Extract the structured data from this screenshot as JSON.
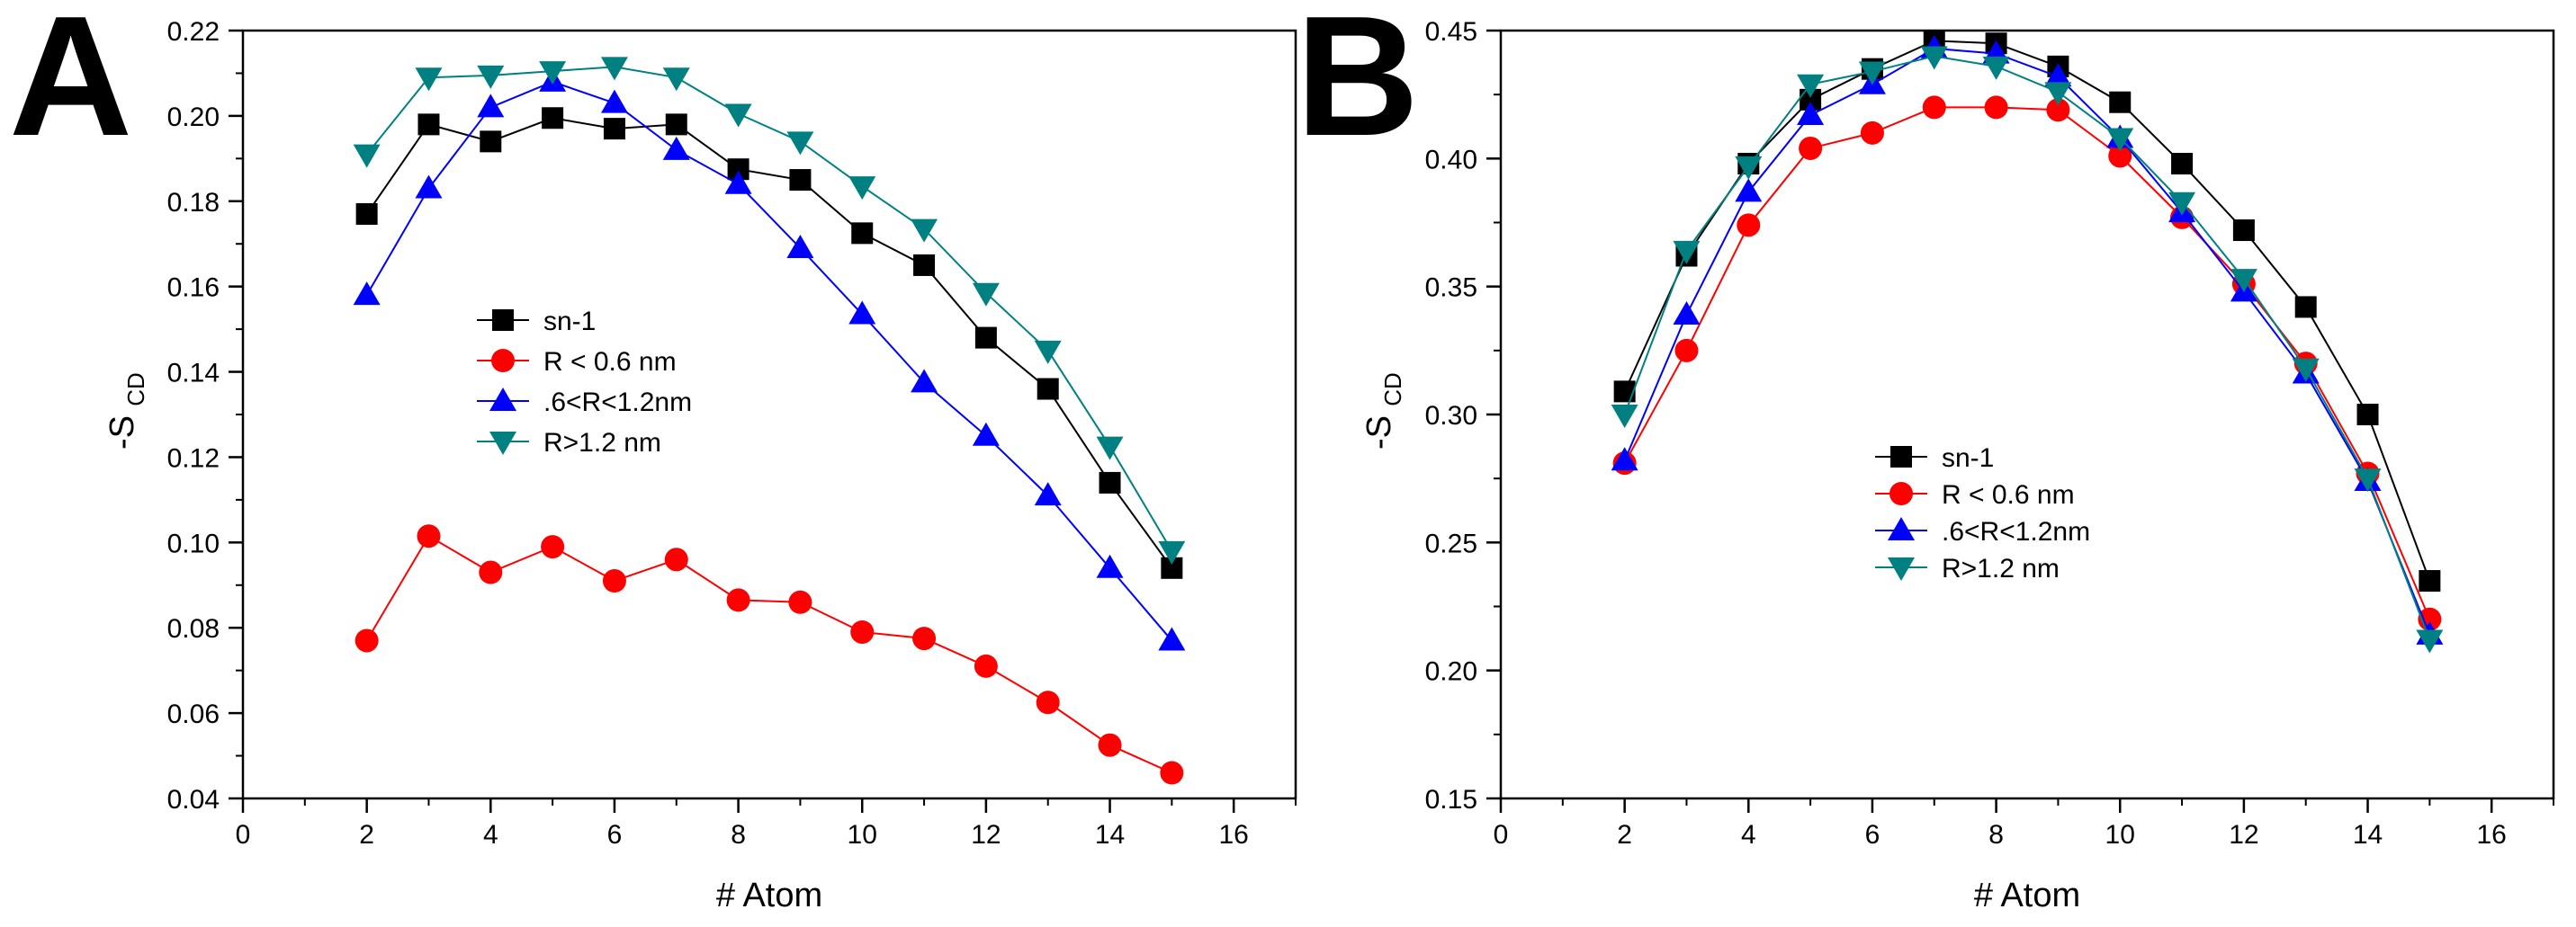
{
  "chart_data": [
    {
      "panel_label": "A",
      "type": "line",
      "xlabel": "# Atom",
      "ylabel_main": "-S",
      "ylabel_sub": "CD",
      "xlim": [
        0,
        17
      ],
      "ylim": [
        0.04,
        0.22
      ],
      "x_ticks": [
        0,
        2,
        4,
        6,
        8,
        10,
        12,
        14,
        16
      ],
      "y_ticks": [
        0.04,
        0.06,
        0.08,
        0.1,
        0.12,
        0.14,
        0.16,
        0.18,
        0.2,
        0.22
      ],
      "x_tick_labels": [
        "0",
        "2",
        "4",
        "6",
        "8",
        "10",
        "12",
        "14",
        "16"
      ],
      "y_tick_labels": [
        "0.04",
        "0.06",
        "0.08",
        "0.10",
        "0.12",
        "0.14",
        "0.16",
        "0.18",
        "0.20",
        "0.22"
      ],
      "legend_position": "center",
      "x": [
        2,
        3,
        4,
        5,
        6,
        7,
        8,
        9,
        10,
        11,
        12,
        13,
        14,
        15
      ],
      "series": [
        {
          "name": "sn-1",
          "color": "#000000",
          "marker": "square",
          "values": [
            0.177,
            0.198,
            0.194,
            0.1995,
            0.197,
            0.198,
            0.1875,
            0.185,
            0.1725,
            0.165,
            0.148,
            0.136,
            0.114,
            0.094
          ]
        },
        {
          "name": "R < 0.6 nm",
          "color": "#ff0000",
          "marker": "circle",
          "values": [
            0.077,
            0.1015,
            0.093,
            0.099,
            0.091,
            0.096,
            0.0865,
            0.086,
            0.079,
            0.0775,
            0.071,
            0.0625,
            0.0525,
            0.046
          ]
        },
        {
          "name": ".6<R<1.2nm",
          "color": "#0000ff",
          "marker": "triangle-up",
          "values": [
            0.158,
            0.183,
            0.202,
            0.208,
            0.203,
            0.192,
            0.184,
            0.169,
            0.1535,
            0.1375,
            0.125,
            0.111,
            0.094,
            0.077
          ]
        },
        {
          "name": "R>1.2 nm",
          "color": "#008080",
          "marker": "triangle-down",
          "values": [
            0.191,
            0.209,
            0.2095,
            0.2105,
            0.2115,
            0.209,
            0.2005,
            0.194,
            0.1835,
            0.1735,
            0.1585,
            0.145,
            0.1225,
            0.098
          ]
        }
      ]
    },
    {
      "panel_label": "B",
      "type": "line",
      "xlabel": "# Atom",
      "ylabel_main": "-S",
      "ylabel_sub": "CD",
      "xlim": [
        0,
        17
      ],
      "ylim": [
        0.15,
        0.45
      ],
      "x_ticks": [
        0,
        2,
        4,
        6,
        8,
        10,
        12,
        14,
        16
      ],
      "y_ticks": [
        0.15,
        0.2,
        0.25,
        0.3,
        0.35,
        0.4,
        0.45
      ],
      "x_tick_labels": [
        "0",
        "2",
        "4",
        "6",
        "8",
        "10",
        "12",
        "14",
        "16"
      ],
      "y_tick_labels": [
        "0.15",
        "0.20",
        "0.25",
        "0.30",
        "0.35",
        "0.40",
        "0.45"
      ],
      "legend_position": "center-right",
      "x": [
        2,
        3,
        4,
        5,
        6,
        7,
        8,
        9,
        10,
        11,
        12,
        13,
        14,
        15
      ],
      "series": [
        {
          "name": "sn-1",
          "color": "#000000",
          "marker": "square",
          "values": [
            0.309,
            0.362,
            0.398,
            0.423,
            0.435,
            0.446,
            0.445,
            0.436,
            0.422,
            0.398,
            0.372,
            0.342,
            0.3,
            0.235
          ]
        },
        {
          "name": "R < 0.6 nm",
          "color": "#ff0000",
          "marker": "circle",
          "values": [
            0.281,
            0.325,
            0.374,
            0.404,
            0.41,
            0.42,
            0.42,
            0.419,
            0.401,
            0.377,
            0.351,
            0.32,
            0.277,
            0.22
          ]
        },
        {
          "name": ".6<R<1.2nm",
          "color": "#0000ff",
          "marker": "triangle-up",
          "values": [
            0.282,
            0.339,
            0.387,
            0.417,
            0.429,
            0.443,
            0.441,
            0.432,
            0.408,
            0.379,
            0.348,
            0.316,
            0.274,
            0.214
          ]
        },
        {
          "name": "R>1.2 nm",
          "color": "#008080",
          "marker": "triangle-down",
          "values": [
            0.3,
            0.364,
            0.397,
            0.429,
            0.434,
            0.44,
            0.436,
            0.426,
            0.408,
            0.383,
            0.353,
            0.318,
            0.275,
            0.212
          ]
        }
      ]
    }
  ]
}
